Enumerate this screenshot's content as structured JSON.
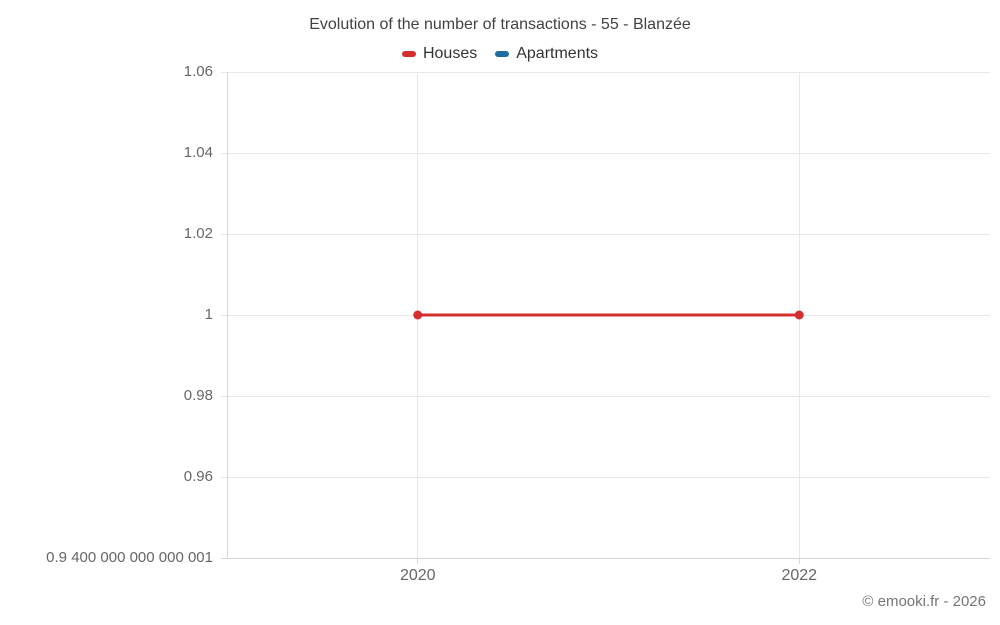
{
  "title": "Evolution of the number of transactions - 55 - Blanzée",
  "footer": "© emooki.fr - 2026",
  "legend": {
    "items": [
      {
        "label": "Houses",
        "color": "#d32f2f"
      },
      {
        "label": "Apartments",
        "color": "#1b6e9e"
      }
    ]
  },
  "chart_data": {
    "type": "line",
    "title": "Evolution of the number of transactions - 55 - Blanzée",
    "categories": [
      "2020",
      "2022"
    ],
    "series": [
      {
        "name": "Houses",
        "color": "#d32f2f",
        "values": [
          1,
          1
        ],
        "marker": "circle"
      },
      {
        "name": "Apartments",
        "color": "#1b6e9e",
        "values": []
      }
    ],
    "xlabel": "",
    "ylabel": "",
    "ylim": [
      0.94,
      1.06
    ],
    "yticks": [
      {
        "value": 1.06,
        "label": "1.06"
      },
      {
        "value": 1.04,
        "label": "1.04"
      },
      {
        "value": 1.02,
        "label": "1.02"
      },
      {
        "value": 1.0,
        "label": "1"
      },
      {
        "value": 0.98,
        "label": "0.98"
      },
      {
        "value": 0.96,
        "label": "0.96"
      },
      {
        "value": 0.94,
        "label": "0.9 400 000 000 000 001"
      }
    ],
    "grid": true,
    "legend_position": "top"
  },
  "colors": {
    "houses": "#d32f2f",
    "apartments": "#1b6e9e",
    "grid": "#e8e8e8",
    "axis": "#d6d6d6",
    "title_text": "#424242",
    "legend_text": "#333333",
    "axis_label_text": "#666666",
    "footer_text": "#757575",
    "background": "#ffffff"
  }
}
